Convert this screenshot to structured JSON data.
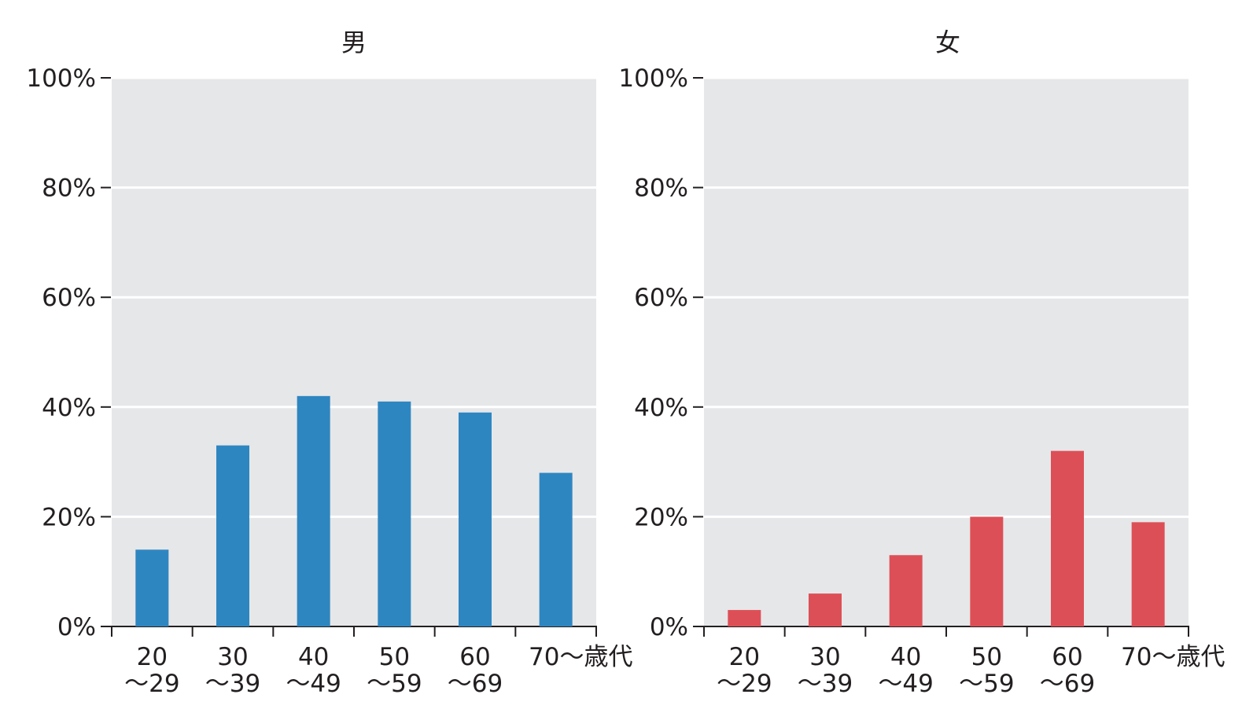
{
  "chart_data": [
    {
      "type": "bar",
      "title": "男",
      "categories": [
        [
          "20",
          "〜29"
        ],
        [
          "30",
          "〜39"
        ],
        [
          "40",
          "〜49"
        ],
        [
          "50",
          "〜59"
        ],
        [
          "60",
          "〜69"
        ],
        [
          "70〜歳代"
        ]
      ],
      "values": [
        14,
        33,
        42,
        41,
        39,
        28
      ],
      "ylim": [
        0,
        100
      ],
      "yticks": [
        "0%",
        "20%",
        "40%",
        "60%",
        "80%",
        "100%"
      ],
      "xlabel": "",
      "ylabel": "",
      "grid": true,
      "color": "#2e86c1",
      "background": "#e6e7e9"
    },
    {
      "type": "bar",
      "title": "女",
      "categories": [
        [
          "20",
          "〜29"
        ],
        [
          "30",
          "〜39"
        ],
        [
          "40",
          "〜49"
        ],
        [
          "50",
          "〜59"
        ],
        [
          "60",
          "〜69"
        ],
        [
          "70〜歳代"
        ]
      ],
      "values": [
        3,
        6,
        13,
        20,
        32,
        19
      ],
      "ylim": [
        0,
        100
      ],
      "yticks": [
        "0%",
        "20%",
        "40%",
        "60%",
        "80%",
        "100%"
      ],
      "xlabel": "",
      "ylabel": "",
      "grid": true,
      "color": "#dd4f56",
      "background": "#e6e7e9"
    }
  ]
}
